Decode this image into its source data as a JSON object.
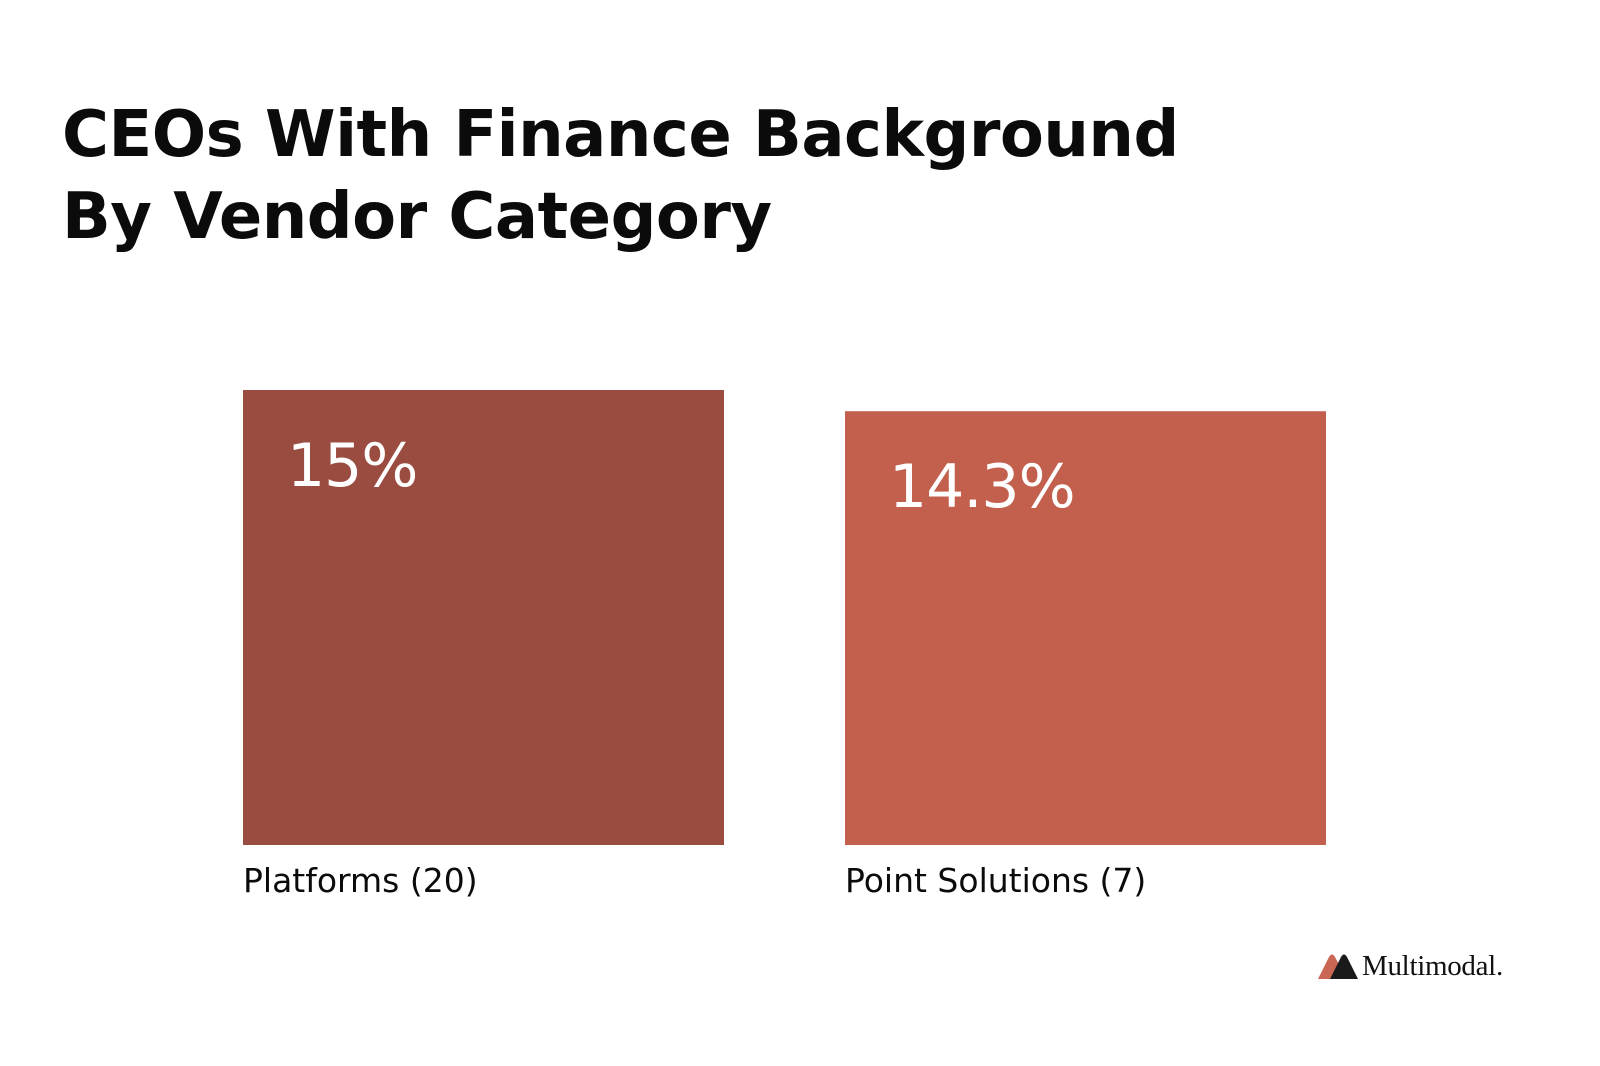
{
  "chart_data": {
    "type": "bar",
    "title": "CEOs With Finance Background By Vendor Category",
    "xlabel": "",
    "ylabel": "",
    "ylim": [
      0,
      15
    ],
    "grid": false,
    "legend": "none",
    "categories": [
      "Platforms (20)",
      "Point Solutions (7)"
    ],
    "values": [
      15,
      14.3
    ],
    "data_labels": [
      "15%",
      "14.3%"
    ],
    "colors": [
      "#9a4c41",
      "#c35f4d"
    ],
    "value_label_color": "#ffffff"
  },
  "brand": {
    "name": "Multimodal.",
    "logo_icon": "multimodal-logo-icon",
    "logo_colors": [
      "#c96754",
      "#1a1a1a"
    ]
  },
  "colors": {
    "background": "#ffffff",
    "text": "#0b0b0b"
  }
}
